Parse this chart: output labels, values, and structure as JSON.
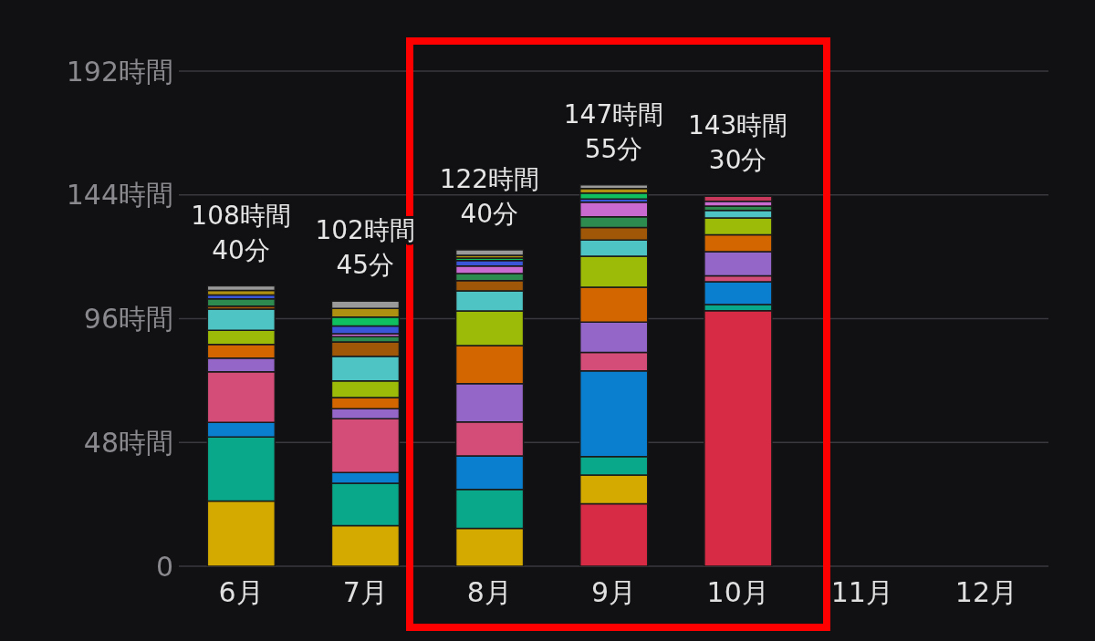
{
  "chart_data": {
    "type": "bar",
    "stacked": true,
    "categories": [
      "6月",
      "7月",
      "8月",
      "9月",
      "10月",
      "11月",
      "12月"
    ],
    "series": [
      {
        "color": "#d62a45",
        "values": [
          0,
          0,
          0,
          24.2,
          99.1,
          null,
          null
        ]
      },
      {
        "color": "#d4aa00",
        "values": [
          25.3,
          15.7,
          14.7,
          11.2,
          0,
          null,
          null
        ]
      },
      {
        "color": "#0aa88a",
        "values": [
          24.8,
          16.5,
          15.1,
          7.1,
          2.4,
          null,
          null
        ]
      },
      {
        "color": "#0a7fd0",
        "values": [
          5.7,
          4.1,
          13.0,
          33.3,
          8.8,
          null,
          null
        ]
      },
      {
        "color": "#d44d78",
        "values": [
          19.6,
          20.9,
          13.2,
          7.1,
          2.3,
          null,
          null
        ]
      },
      {
        "color": "#9466c8",
        "values": [
          5.3,
          3.9,
          14.8,
          11.8,
          9.4,
          null,
          null
        ]
      },
      {
        "color": "#d46600",
        "values": [
          5.3,
          4.3,
          14.8,
          13.5,
          6.5,
          null,
          null
        ]
      },
      {
        "color": "#9cba08",
        "values": [
          5.5,
          6.5,
          13.4,
          12.0,
          6.6,
          null,
          null
        ]
      },
      {
        "color": "#4fc4c4",
        "values": [
          8.2,
          9.5,
          7.8,
          6.3,
          2.9,
          null,
          null
        ]
      },
      {
        "color": "#a05808",
        "values": [
          1.2,
          5.6,
          4.0,
          4.9,
          0,
          null,
          null
        ]
      },
      {
        "color": "#2e8b50",
        "values": [
          2.8,
          2.0,
          2.7,
          4.1,
          1.7,
          null,
          null
        ]
      },
      {
        "color": "#c86ad0",
        "values": [
          0,
          1.2,
          2.9,
          5.7,
          1.8,
          null,
          null
        ]
      },
      {
        "color": "#3a55d8",
        "values": [
          1.5,
          3.0,
          2.1,
          1.2,
          0,
          null,
          null
        ]
      },
      {
        "color": "#10c060",
        "values": [
          0,
          3.4,
          1.0,
          2.3,
          0,
          null,
          null
        ]
      },
      {
        "color": "#b09010",
        "values": [
          1.8,
          3.4,
          1.1,
          1.8,
          0,
          null,
          null
        ]
      },
      {
        "color": "#9a9a9a",
        "values": [
          1.7,
          2.8,
          2.1,
          1.4,
          0,
          null,
          null
        ]
      },
      {
        "color": "#c8385a",
        "values": [
          0,
          0,
          0,
          0,
          2.0,
          null,
          null
        ]
      }
    ],
    "ylim": [
      0,
      192
    ],
    "yticks": [
      0,
      {
        "value": 48,
        "label": "48時間"
      },
      {
        "value": 96,
        "label": "96時間"
      },
      {
        "value": 144,
        "label": "144時間"
      },
      {
        "value": 192,
        "label": "192時間"
      }
    ],
    "grid": "y",
    "totals": [
      "108時間\n40分",
      "102時間\n45分",
      "122時間\n40分",
      "147時間\n55分",
      "143時間\n30分",
      null,
      null
    ]
  }
}
